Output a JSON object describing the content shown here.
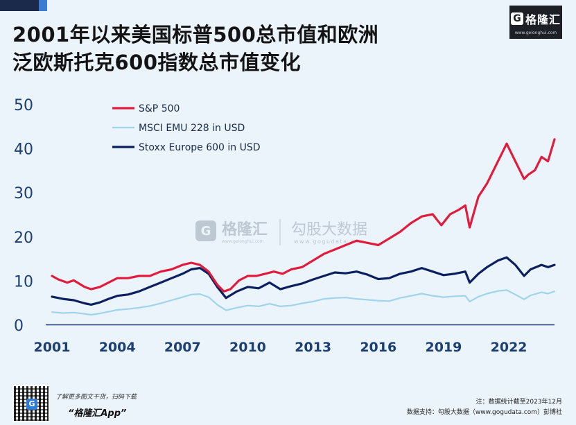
{
  "header": {
    "title_line1": "2001年以来美国标普500总市值和欧洲",
    "title_line2": "泛欧斯托克600指数总市值变化"
  },
  "brand": {
    "logo_letter": "G",
    "logo_name": "格隆汇",
    "logo_url": "www.gelonghui.com"
  },
  "watermark": {
    "gelonghui": "格隆汇",
    "gelonghui_url": "www.gelonghui.com",
    "gogudata": "勾股大数据",
    "gogudata_url": "www.gogudata.com"
  },
  "footer": {
    "prompt": "了解更多图文干货，扫码下载",
    "app_name": "“格隆汇App”",
    "note": "注：数据统计截至2023年12月",
    "source": "数据支持：勾股大数据（www.gogudata.com）彭博社"
  },
  "colors": {
    "sp500": "#e01b3c",
    "msci": "#9fd4ea",
    "stoxx": "#0c1f5f",
    "axis": "#1a3a6c",
    "tick_text": "#1c3f73"
  },
  "chart_data": {
    "type": "line",
    "title": "",
    "xlabel": "",
    "ylabel": "",
    "ylim": [
      0,
      50
    ],
    "yticks": [
      0,
      10,
      20,
      30,
      40,
      50
    ],
    "xlim": [
      2001,
      2024.1
    ],
    "xticks": [
      2001,
      2004,
      2007,
      2010,
      2013,
      2016,
      2019,
      2022
    ],
    "grid": false,
    "legend": "top-left",
    "series": [
      {
        "name": "S&P 500",
        "x": [
          2001,
          2001.3,
          2001.7,
          2002,
          2002.5,
          2002.8,
          2003.2,
          2003.6,
          2004,
          2004.5,
          2005,
          2005.5,
          2006,
          2006.5,
          2007,
          2007.4,
          2007.8,
          2008.2,
          2008.6,
          2008.9,
          2009.2,
          2009.6,
          2010,
          2010.4,
          2010.8,
          2011.2,
          2011.6,
          2012,
          2012.5,
          2013,
          2013.5,
          2014,
          2014.5,
          2015,
          2015.5,
          2016,
          2016.5,
          2017,
          2017.5,
          2018,
          2018.5,
          2018.9,
          2019.3,
          2019.7,
          2020,
          2020.2,
          2020.6,
          2021,
          2021.4,
          2021.9,
          2022.3,
          2022.7,
          2022.9,
          2023.2,
          2023.5,
          2023.8,
          2024.1
        ],
        "values": [
          11,
          10.2,
          9.5,
          10,
          8.5,
          8,
          8.5,
          9.5,
          10.5,
          10.5,
          11,
          11,
          12,
          12.5,
          13.5,
          14,
          13.5,
          12,
          9,
          7.5,
          8,
          10,
          11,
          11,
          11.5,
          12,
          11.5,
          12.5,
          13,
          14.5,
          16,
          17,
          18,
          19,
          18.5,
          18,
          19.5,
          21,
          23,
          24.5,
          25,
          22.5,
          25,
          26,
          27,
          22,
          29,
          32,
          36,
          41,
          37,
          33,
          34,
          35,
          38,
          37,
          42
        ]
      },
      {
        "name": "MSCI EMU 228 in USD",
        "x": [
          2001,
          2001.5,
          2002,
          2002.5,
          2002.8,
          2003.2,
          2003.6,
          2004,
          2004.5,
          2005,
          2005.5,
          2006,
          2006.5,
          2007,
          2007.4,
          2007.8,
          2008.2,
          2008.6,
          2009,
          2009.5,
          2010,
          2010.5,
          2011,
          2011.5,
          2012,
          2012.5,
          2013,
          2013.5,
          2014,
          2014.5,
          2015,
          2015.5,
          2016,
          2016.5,
          2017,
          2017.5,
          2018,
          2018.5,
          2019,
          2019.5,
          2020,
          2020.2,
          2020.6,
          2021,
          2021.5,
          2021.9,
          2022.3,
          2022.7,
          2023,
          2023.5,
          2023.8,
          2024.1
        ],
        "values": [
          2.8,
          2.6,
          2.7,
          2.4,
          2.2,
          2.5,
          2.9,
          3.3,
          3.5,
          3.8,
          4.2,
          4.8,
          5.5,
          6.2,
          6.8,
          6.9,
          6.2,
          4.5,
          3.2,
          3.8,
          4.3,
          4.1,
          4.7,
          4.1,
          4.3,
          4.8,
          5.2,
          5.8,
          6,
          6.1,
          5.8,
          5.6,
          5.4,
          5.3,
          6,
          6.5,
          7,
          6.5,
          6.2,
          6.4,
          6.5,
          5.2,
          6.3,
          7,
          7.6,
          7.8,
          6.8,
          5.7,
          6.6,
          7.3,
          7,
          7.5
        ]
      },
      {
        "name": "Stoxx Europe 600 in USD",
        "x": [
          2001,
          2001.5,
          2002,
          2002.5,
          2002.8,
          2003.2,
          2003.6,
          2004,
          2004.5,
          2005,
          2005.5,
          2006,
          2006.5,
          2007,
          2007.4,
          2007.8,
          2008.2,
          2008.6,
          2009,
          2009.5,
          2010,
          2010.5,
          2011,
          2011.5,
          2012,
          2012.5,
          2013,
          2013.5,
          2014,
          2014.5,
          2015,
          2015.5,
          2016,
          2016.5,
          2017,
          2017.5,
          2018,
          2018.5,
          2019,
          2019.5,
          2020,
          2020.2,
          2020.6,
          2021,
          2021.5,
          2021.9,
          2022.3,
          2022.7,
          2023,
          2023.5,
          2023.8,
          2024.1
        ],
        "values": [
          6.3,
          5.8,
          5.5,
          4.8,
          4.5,
          5,
          5.8,
          6.5,
          6.8,
          7.5,
          8.5,
          9.5,
          10.5,
          11.5,
          12.5,
          12.8,
          11.5,
          8.5,
          6,
          7.5,
          8.5,
          8.2,
          9.5,
          8,
          8.7,
          9.3,
          10.2,
          11,
          11.8,
          11.6,
          12,
          11.3,
          10.3,
          10.5,
          11.5,
          12,
          12.8,
          12,
          11.2,
          11.5,
          12,
          9.5,
          11.5,
          13,
          14.5,
          15.2,
          13.5,
          11,
          12.5,
          13.5,
          13,
          13.5
        ]
      }
    ]
  }
}
